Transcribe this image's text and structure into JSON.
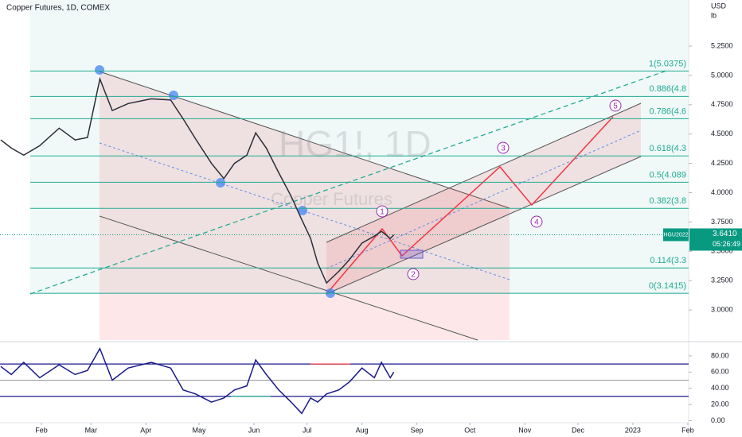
{
  "chart_data": [
    {
      "type": "line",
      "title": "Copper Futures, 1D, COMEX",
      "watermark": "HG1!, 1D",
      "watermark_sub": "Copper Futures",
      "currency": "USD",
      "unit": "lb",
      "color": "#2a2e39",
      "x": [
        8,
        14,
        21,
        30,
        41,
        50,
        57,
        64,
        71,
        80,
        93,
        104,
        111,
        118,
        127,
        134,
        140,
        147,
        152,
        158,
        165,
        172,
        178,
        183,
        187,
        192,
        199,
        205,
        212,
        219,
        223,
        228,
        230
      ],
      "values": [
        4.45,
        4.38,
        4.32,
        4.4,
        4.55,
        4.45,
        4.47,
        4.97,
        4.7,
        4.76,
        4.8,
        4.79,
        4.63,
        4.46,
        4.25,
        4.12,
        4.25,
        4.32,
        4.51,
        4.38,
        4.17,
        3.97,
        3.77,
        3.61,
        3.4,
        3.23,
        3.33,
        3.43,
        3.57,
        3.63,
        3.67,
        3.61,
        3.64
      ],
      "xlim": [
        7.6,
        396.5
      ],
      "xticks": [
        {
          "value": 31,
          "label": "Feb"
        },
        {
          "value": 59,
          "label": "Mar"
        },
        {
          "value": 90,
          "label": "Apr"
        },
        {
          "value": 120,
          "label": "May"
        },
        {
          "value": 151,
          "label": "Jun"
        },
        {
          "value": 181,
          "label": "Jul"
        },
        {
          "value": 212,
          "label": "Aug"
        },
        {
          "value": 243,
          "label": "Sep"
        },
        {
          "value": 273,
          "label": "Oct"
        },
        {
          "value": 304,
          "label": "Nov"
        },
        {
          "value": 334,
          "label": "Dec"
        },
        {
          "value": 365,
          "label": "2023"
        },
        {
          "value": 396,
          "label": "Feb"
        }
      ],
      "ylim": [
        2.743,
        5.643
      ],
      "yticks": [
        {
          "value": 5.25,
          "label": "5.2500"
        },
        {
          "value": 5.0,
          "label": "5.0000"
        },
        {
          "value": 4.75,
          "label": "4.7500"
        },
        {
          "value": 4.5,
          "label": "4.5000"
        },
        {
          "value": 4.25,
          "label": "4.2500"
        },
        {
          "value": 4.0,
          "label": "4.0000"
        },
        {
          "value": 3.75,
          "label": "3.7500"
        },
        {
          "value": 3.5,
          "label": "3.5000"
        },
        {
          "value": 3.25,
          "label": "3.2500"
        },
        {
          "value": 3.0,
          "label": "3.0000"
        }
      ],
      "fib_levels": [
        {
          "value": 5.0375,
          "label": "1(5.0375)"
        },
        {
          "value": 4.821,
          "label": "0.886(4.8"
        },
        {
          "value": 4.631,
          "label": "0.786(4.6"
        },
        {
          "value": 4.313,
          "label": "0.618(4.3"
        },
        {
          "value": 4.089,
          "label": "0.5(4.089"
        },
        {
          "value": 3.866,
          "label": "0.382(3.8"
        },
        {
          "value": 3.358,
          "label": "0.114(3.3"
        },
        {
          "value": 3.1415,
          "label": "0(3.1415)"
        }
      ],
      "fib_color": "#22ab94",
      "last_price": {
        "value": 3.641,
        "label": "3.6410"
      },
      "symbol": "HGU2022",
      "countdown": "05:26:49",
      "last_color": "#089981",
      "annotations": [
        "1",
        "2",
        "3",
        "4",
        "5"
      ]
    },
    {
      "type": "line",
      "color": "#1a1a8c",
      "x": [
        8,
        14,
        21,
        30,
        41,
        50,
        57,
        64,
        71,
        80,
        93,
        104,
        111,
        118,
        127,
        134,
        140,
        147,
        152,
        158,
        165,
        172,
        178,
        183,
        187,
        192,
        199,
        205,
        212,
        219,
        223,
        228,
        230
      ],
      "values": [
        67,
        57,
        72,
        53,
        69,
        57,
        62,
        89,
        50,
        65,
        72,
        65,
        38,
        33,
        23,
        28,
        38,
        43,
        75,
        57,
        38,
        23,
        9,
        28,
        23,
        33,
        38,
        48,
        65,
        53,
        72,
        53,
        60
      ],
      "ylim": [
        -0.5,
        95.6
      ],
      "yticks": [
        {
          "value": 80,
          "label": "80.00"
        },
        {
          "value": 60,
          "label": "60.00"
        },
        {
          "value": 40,
          "label": "40.00"
        },
        {
          "value": 20,
          "label": "20.00"
        },
        {
          "value": 0,
          "label": "0.00"
        }
      ],
      "bands": [
        70,
        50,
        30
      ]
    }
  ]
}
